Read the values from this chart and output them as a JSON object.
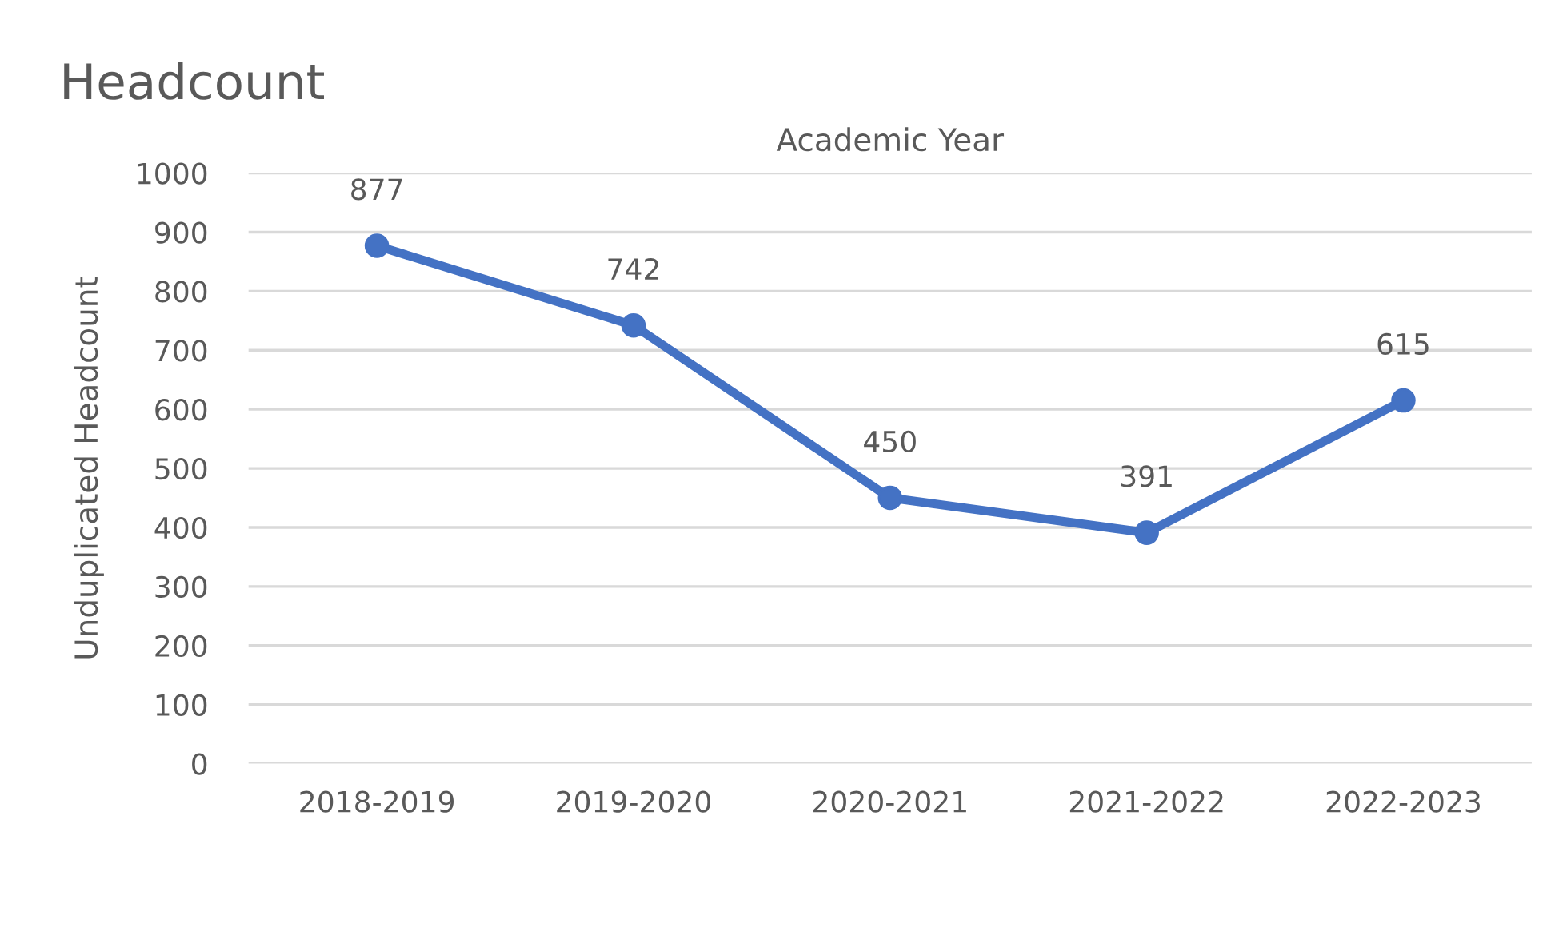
{
  "chart_data": {
    "type": "line",
    "title": "Headcount",
    "xlabel": "Academic Year",
    "ylabel": "Unduplicated Headcount",
    "categories": [
      "2018-2019",
      "2019-2020",
      "2020-2021",
      "2021-2022",
      "2022-2023"
    ],
    "series": [
      {
        "color": "#4472c4",
        "values": [
          877,
          742,
          450,
          391,
          615
        ]
      }
    ],
    "ylim": [
      0,
      1000
    ],
    "yticks": [
      0,
      100,
      200,
      300,
      400,
      500,
      600,
      700,
      800,
      900,
      1000
    ],
    "grid": "y",
    "marker": "circle",
    "line_style": "solid",
    "data_labels": true
  }
}
